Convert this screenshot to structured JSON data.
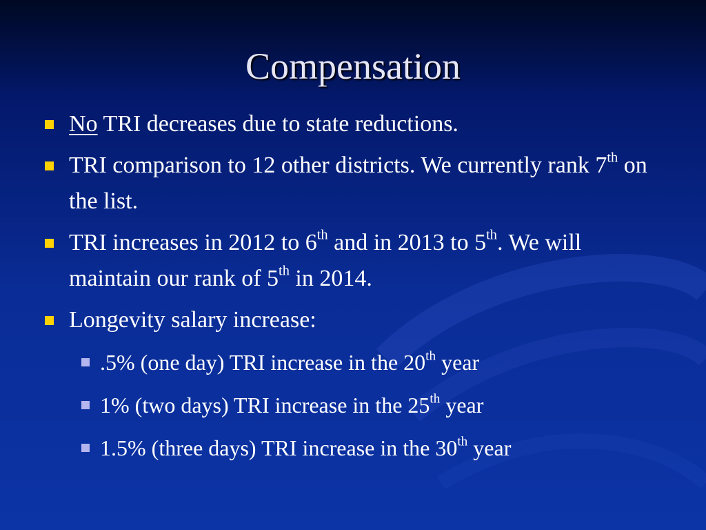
{
  "title": "Compensation",
  "bullets": [
    [
      "No",
      " TRI decreases due to state reductions."
    ],
    [
      "TRI comparison to 12 other districts. We currently rank 7",
      "th",
      " on the list."
    ],
    [
      "TRI increases in 2012 to 6",
      "th",
      " and in 2013 to 5",
      "th",
      ". We will maintain our rank of 5",
      "th",
      " in 2014."
    ],
    [
      "Longevity salary increase:"
    ]
  ],
  "sub_bullets": [
    [
      ".5% (one day) TRI increase in the 20",
      "th",
      " year"
    ],
    [
      "1% (two days) TRI increase in the 25",
      "th",
      " year"
    ],
    [
      "1.5% (three days) TRI increase in the 30",
      "th",
      " year"
    ]
  ]
}
